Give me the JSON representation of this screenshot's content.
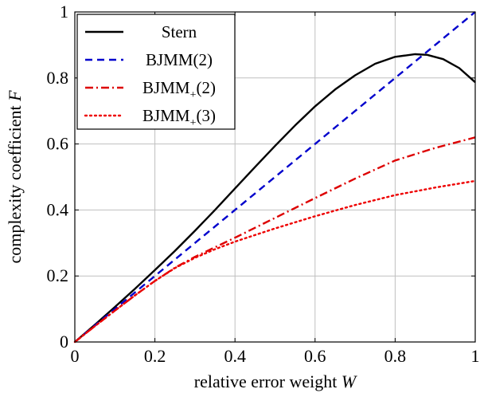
{
  "chart_data": {
    "type": "line",
    "title": "",
    "xlabel": "relative error weight",
    "xlabel_var": "W",
    "ylabel": "complexity coefficient",
    "ylabel_var": "F",
    "xlim": [
      0,
      1
    ],
    "ylim": [
      0,
      1
    ],
    "xticks": [
      0,
      0.2,
      0.4,
      0.6,
      0.8,
      1
    ],
    "yticks": [
      0,
      0.2,
      0.4,
      0.6,
      0.8,
      1
    ],
    "xtick_labels": [
      "0",
      "0.2",
      "0.4",
      "0.6",
      "0.8",
      "1"
    ],
    "ytick_labels": [
      "0",
      "0.2",
      "0.4",
      "0.6",
      "0.8",
      "1"
    ],
    "grid": true,
    "legend_position": "top-left",
    "series": [
      {
        "name": "Stern",
        "name_main": "Stern",
        "name_sub": "",
        "name_tail": "",
        "color": "#000000",
        "style": "solid",
        "x": [
          0,
          0.05,
          0.1,
          0.15,
          0.2,
          0.25,
          0.3,
          0.35,
          0.4,
          0.45,
          0.5,
          0.55,
          0.6,
          0.65,
          0.7,
          0.75,
          0.8,
          0.85,
          0.88,
          0.92,
          0.96,
          1.0
        ],
        "y": [
          0,
          0.052,
          0.106,
          0.161,
          0.218,
          0.276,
          0.337,
          0.4,
          0.465,
          0.53,
          0.594,
          0.656,
          0.714,
          0.765,
          0.808,
          0.843,
          0.864,
          0.872,
          0.87,
          0.857,
          0.83,
          0.787
        ]
      },
      {
        "name": "BJMM(2)",
        "name_main": "BJMM(2)",
        "name_sub": "",
        "name_tail": "",
        "color": "#0000cc",
        "style": "dashed",
        "x": [
          0,
          1
        ],
        "y": [
          0,
          1
        ]
      },
      {
        "name": "BJMM+(2)",
        "name_main": "BJMM",
        "name_sub": "+",
        "name_tail": "(2)",
        "color": "#dd0000",
        "style": "dashdot",
        "x": [
          0,
          0.05,
          0.1,
          0.15,
          0.2,
          0.25,
          0.3,
          0.35,
          0.4,
          0.5,
          0.6,
          0.7,
          0.8,
          0.9,
          1.0
        ],
        "y": [
          0,
          0.048,
          0.095,
          0.141,
          0.185,
          0.225,
          0.258,
          0.287,
          0.316,
          0.376,
          0.436,
          0.495,
          0.55,
          0.588,
          0.62
        ]
      },
      {
        "name": "BJMM+(3)",
        "name_main": "BJMM",
        "name_sub": "+",
        "name_tail": "(3)",
        "color": "#ee0000",
        "style": "dotted",
        "x": [
          0,
          0.05,
          0.1,
          0.15,
          0.2,
          0.25,
          0.3,
          0.35,
          0.4,
          0.5,
          0.6,
          0.7,
          0.8,
          0.9,
          1.0
        ],
        "y": [
          0,
          0.048,
          0.095,
          0.141,
          0.185,
          0.224,
          0.255,
          0.281,
          0.304,
          0.344,
          0.381,
          0.415,
          0.445,
          0.468,
          0.488
        ]
      }
    ]
  }
}
